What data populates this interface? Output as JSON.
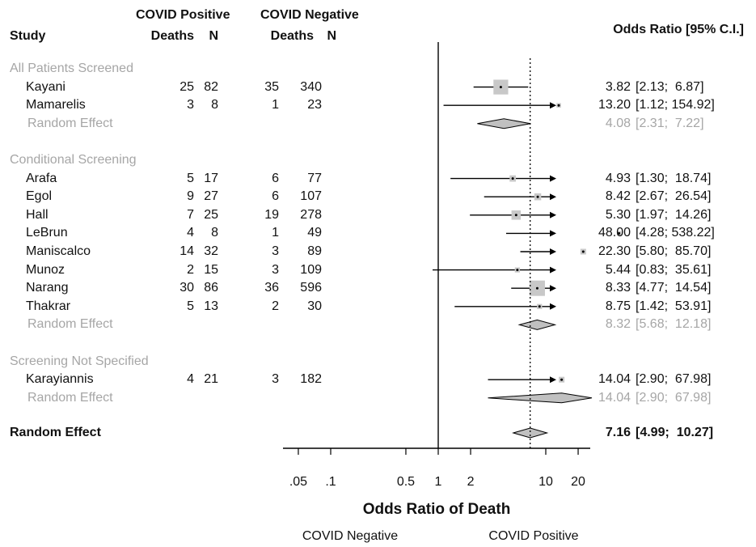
{
  "headers": {
    "study": "Study",
    "pos_group": "COVID Positive",
    "neg_group": "COVID Negative",
    "deaths": "Deaths",
    "n": "N",
    "or_ci": "Odds Ratio [95% C.I.]"
  },
  "chart_data": {
    "type": "forest",
    "xscale": "log",
    "xlabel": "Odds Ratio of Death",
    "null_value": 1,
    "overall_reference_line": 7.16,
    "xticks": [
      0.05,
      0.1,
      0.5,
      1,
      2,
      10,
      20
    ],
    "xtick_labels": [
      ".05",
      ".1",
      "0.5",
      "1",
      "2",
      "10",
      "20"
    ],
    "xlim": [
      0.035,
      60
    ],
    "favors_left": "COVID Negative",
    "favors_right": "COVID Positive",
    "groups": [
      {
        "name": "All Patients Screened",
        "studies": [
          {
            "study": "Kayani",
            "pos_deaths": "25",
            "pos_n": "82",
            "neg_deaths": "35",
            "neg_n": "340",
            "or": 3.82,
            "lo": 2.13,
            "hi": 6.87,
            "weight": 0.95,
            "or_text": "3.82",
            "ci_text": "[2.13;  6.87]"
          },
          {
            "study": "Mamarelis",
            "pos_deaths": "3",
            "pos_n": "8",
            "neg_deaths": "1",
            "neg_n": "23",
            "or": 13.2,
            "lo": 1.12,
            "hi": 154.92,
            "weight": 0.1,
            "or_text": "13.20",
            "ci_text": "[1.12; 154.92]"
          }
        ],
        "random_effect": {
          "label": "Random Effect",
          "or": 4.08,
          "lo": 2.31,
          "hi": 7.22,
          "or_text": "4.08",
          "ci_text": "[2.31;  7.22]"
        }
      },
      {
        "name": "Conditional Screening",
        "studies": [
          {
            "study": "Arafa",
            "pos_deaths": "5",
            "pos_n": "17",
            "neg_deaths": "6",
            "neg_n": "77",
            "or": 4.93,
            "lo": 1.3,
            "hi": 18.74,
            "weight": 0.25,
            "or_text": "4.93",
            "ci_text": "[1.30;  18.74]"
          },
          {
            "study": "Egol",
            "pos_deaths": "9",
            "pos_n": "27",
            "neg_deaths": "6",
            "neg_n": "107",
            "or": 8.42,
            "lo": 2.67,
            "hi": 26.54,
            "weight": 0.3,
            "or_text": "8.42",
            "ci_text": "[2.67;  26.54]"
          },
          {
            "study": "Hall",
            "pos_deaths": "7",
            "pos_n": "25",
            "neg_deaths": "19",
            "neg_n": "278",
            "or": 5.3,
            "lo": 1.97,
            "hi": 14.26,
            "weight": 0.5,
            "or_text": "5.30",
            "ci_text": "[1.97;  14.26]"
          },
          {
            "study": "LeBrun",
            "pos_deaths": "4",
            "pos_n": "8",
            "neg_deaths": "1",
            "neg_n": "49",
            "or": 48.0,
            "lo": 4.28,
            "hi": 538.22,
            "weight": 0.1,
            "or_text": "48.00",
            "ci_text": "[4.28; 538.22]"
          },
          {
            "study": "Maniscalco",
            "pos_deaths": "14",
            "pos_n": "32",
            "neg_deaths": "3",
            "neg_n": "89",
            "or": 22.3,
            "lo": 5.8,
            "hi": 85.7,
            "weight": 0.2,
            "or_text": "22.30",
            "ci_text": "[5.80;  85.70]"
          },
          {
            "study": "Munoz",
            "pos_deaths": "2",
            "pos_n": "15",
            "neg_deaths": "3",
            "neg_n": "109",
            "or": 5.44,
            "lo": 0.83,
            "hi": 35.61,
            "weight": 0.15,
            "or_text": "5.44",
            "ci_text": "[0.83;  35.61]"
          },
          {
            "study": "Narang",
            "pos_deaths": "30",
            "pos_n": "86",
            "neg_deaths": "36",
            "neg_n": "596",
            "or": 8.33,
            "lo": 4.77,
            "hi": 14.54,
            "weight": 1.0,
            "or_text": "8.33",
            "ci_text": "[4.77;  14.54]"
          },
          {
            "study": "Thakrar",
            "pos_deaths": "5",
            "pos_n": "13",
            "neg_deaths": "2",
            "neg_n": "30",
            "or": 8.75,
            "lo": 1.42,
            "hi": 53.91,
            "weight": 0.15,
            "or_text": "8.75",
            "ci_text": "[1.42;  53.91]"
          }
        ],
        "random_effect": {
          "label": "Random Effect",
          "or": 8.32,
          "lo": 5.68,
          "hi": 12.18,
          "or_text": "8.32",
          "ci_text": "[5.68;  12.18]"
        }
      },
      {
        "name": "Screening Not Specified",
        "studies": [
          {
            "study": "Karayiannis",
            "pos_deaths": "4",
            "pos_n": "21",
            "neg_deaths": "3",
            "neg_n": "182",
            "or": 14.04,
            "lo": 2.9,
            "hi": 67.98,
            "weight": 0.2,
            "or_text": "14.04",
            "ci_text": "[2.90;  67.98]"
          }
        ],
        "random_effect": {
          "label": "Random Effect",
          "or": 14.04,
          "lo": 2.9,
          "hi": 67.98,
          "or_text": "14.04",
          "ci_text": "[2.90;  67.98]"
        }
      }
    ],
    "overall": {
      "label": "Random Effect",
      "or": 7.16,
      "lo": 4.99,
      "hi": 10.27,
      "or_text": "7.16",
      "ci_text": "[4.99;  10.27]"
    },
    "colors": {
      "marker": "#c8c8c8",
      "diamond": "#c0c0c0",
      "line": "#000000",
      "grey_text": "#a6a6a6"
    }
  }
}
